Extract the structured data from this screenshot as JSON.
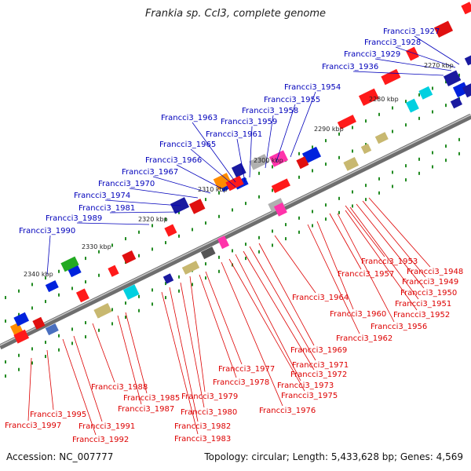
{
  "header": {
    "title": "Frankia sp. CcI3, complete genome"
  },
  "footer": {
    "accession": "Accession: NC_007777",
    "topology": "Topology: circular; Length: 5,433,628 bp; Genes: 4,569"
  },
  "colors": {
    "forward_label": "#0000bb",
    "reverse_label": "#dd0000",
    "backbone": "#888888",
    "tick": "#228b22"
  },
  "scale_labels": [
    "2270 kbp",
    "2280 kbp",
    "2290 kbp",
    "2300 kbp",
    "2310 kbp",
    "2320 kbp",
    "2330 kbp",
    "2340 kbp"
  ],
  "forward_gene_labels": [
    "Francci3_1927",
    "Francci3_1928",
    "Francci3_1929",
    "Francci3_1936",
    "Francci3_1954",
    "Francci3_1955",
    "Francci3_1958",
    "Francci3_1963",
    "Francci3_1959",
    "Francci3_1961",
    "Francci3_1965",
    "Francci3_1966",
    "Francci3_1967",
    "Francci3_1970",
    "Francci3_1974",
    "Francci3_1981",
    "Francci3_1989",
    "Francci3_1990"
  ],
  "reverse_gene_labels": [
    "Francci3_1953",
    "Francci3_1948",
    "Francci3_1957",
    "Francci3_1949",
    "Francci3_1950",
    "Francci3_1951",
    "Francci3_1952",
    "Francci3_1956",
    "Francci3_1964",
    "Francci3_1960",
    "Francci3_1962",
    "Francci3_1969",
    "Francci3_1971",
    "Francci3_1972",
    "Francci3_1973",
    "Francci3_1975",
    "Francci3_1976",
    "Francci3_1977",
    "Francci3_1978",
    "Francci3_1979",
    "Francci3_1980",
    "Francci3_1982",
    "Francci3_1983",
    "Francci3_1985",
    "Francci3_1987",
    "Francci3_1988",
    "Francci3_1991",
    "Francci3_1992",
    "Francci3_1995",
    "Francci3_1997"
  ]
}
